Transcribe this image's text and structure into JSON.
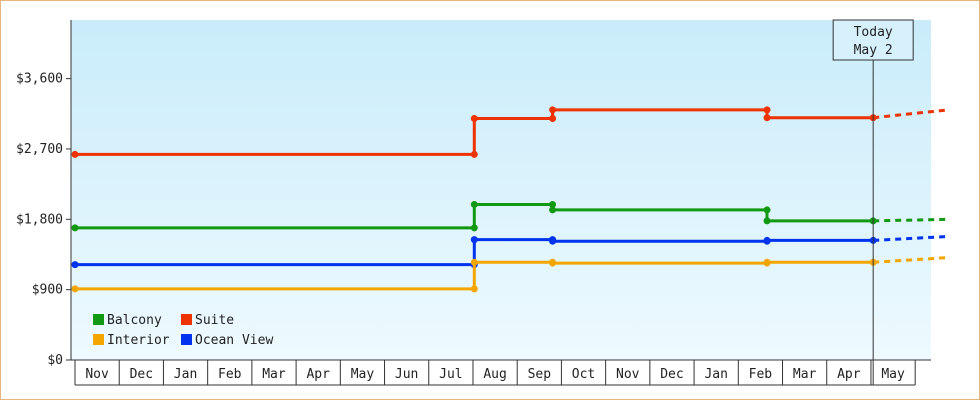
{
  "chart_data": {
    "type": "line",
    "title": "",
    "xlabel": "",
    "ylabel": "",
    "ylim": [
      0,
      4350
    ],
    "y_ticks": [
      "$0",
      "$900",
      "$1,800",
      "$2,700",
      "$3,600"
    ],
    "y_tick_values": [
      0,
      900,
      1800,
      2700,
      3600
    ],
    "months": [
      "Nov",
      "Dec",
      "Jan",
      "Feb",
      "Mar",
      "Apr",
      "May",
      "Jun",
      "Jul",
      "Aug",
      "Sep",
      "Oct",
      "Nov",
      "Dec",
      "Jan",
      "Feb",
      "Mar",
      "Apr",
      "May"
    ],
    "today": {
      "line1": "Today",
      "line2": "May 2",
      "x": 18.05
    },
    "x_range": [
      0,
      19.75
    ],
    "series": [
      {
        "name": "Suite",
        "color": "#ee3300",
        "points": [
          [
            0,
            2630
          ],
          [
            9.03,
            2630
          ],
          [
            9.03,
            3090
          ],
          [
            10.8,
            3090
          ],
          [
            10.8,
            3200
          ],
          [
            15.65,
            3200
          ],
          [
            15.65,
            3100
          ],
          [
            18.05,
            3100
          ]
        ],
        "projection": [
          [
            18.05,
            3100
          ],
          [
            19.75,
            3200
          ]
        ]
      },
      {
        "name": "Balcony",
        "color": "#119911",
        "points": [
          [
            0,
            1690
          ],
          [
            9.03,
            1690
          ],
          [
            9.03,
            1990
          ],
          [
            10.8,
            1990
          ],
          [
            10.8,
            1920
          ],
          [
            15.65,
            1920
          ],
          [
            15.65,
            1780
          ],
          [
            18.05,
            1780
          ]
        ],
        "projection": [
          [
            18.05,
            1780
          ],
          [
            19.75,
            1800
          ]
        ]
      },
      {
        "name": "Ocean View",
        "color": "#0033ee",
        "points": [
          [
            0,
            1220
          ],
          [
            9.03,
            1220
          ],
          [
            9.03,
            1540
          ],
          [
            10.8,
            1540
          ],
          [
            10.8,
            1520
          ],
          [
            15.65,
            1520
          ],
          [
            15.65,
            1530
          ],
          [
            18.05,
            1530
          ]
        ],
        "projection": [
          [
            18.05,
            1530
          ],
          [
            19.75,
            1580
          ]
        ]
      },
      {
        "name": "Interior",
        "color": "#f4a500",
        "points": [
          [
            0,
            910
          ],
          [
            9.03,
            910
          ],
          [
            9.03,
            1250
          ],
          [
            10.8,
            1250
          ],
          [
            10.8,
            1240
          ],
          [
            15.65,
            1240
          ],
          [
            15.65,
            1250
          ],
          [
            18.05,
            1250
          ]
        ],
        "projection": [
          [
            18.05,
            1250
          ],
          [
            19.75,
            1310
          ]
        ]
      }
    ],
    "legend": {
      "placement": "bottom-left",
      "items": [
        {
          "name": "Balcony",
          "color": "#119911"
        },
        {
          "name": "Suite",
          "color": "#ee3300"
        },
        {
          "name": "Interior",
          "color": "#f4a500"
        },
        {
          "name": "Ocean View",
          "color": "#0033ee"
        }
      ]
    }
  }
}
